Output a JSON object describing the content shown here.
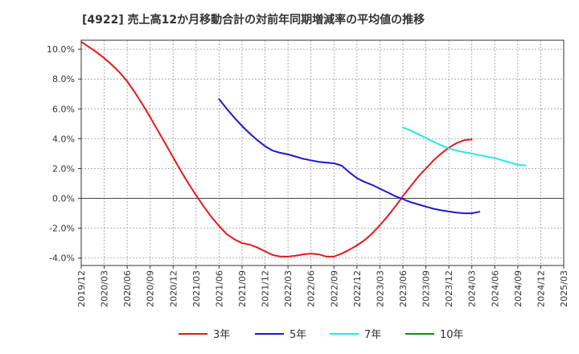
{
  "chart_data": {
    "type": "line",
    "title": "[4922]  売上高12か月移動合計の対前年同期増減率の平均値の推移",
    "xlabel": "",
    "ylabel": "",
    "x_ticks": [
      "2019/12",
      "2020/03",
      "2020/06",
      "2020/09",
      "2020/12",
      "2021/03",
      "2021/06",
      "2021/09",
      "2021/12",
      "2022/03",
      "2022/06",
      "2022/09",
      "2022/12",
      "2023/03",
      "2023/06",
      "2023/09",
      "2023/12",
      "2024/03",
      "2024/06",
      "2024/09",
      "2024/12",
      "2025/03"
    ],
    "y_ticks": [
      "10.0%",
      "8.0%",
      "6.0%",
      "4.0%",
      "2.0%",
      "0.0%",
      "-2.0%",
      "-4.0%"
    ],
    "y_tick_values": [
      10,
      8,
      6,
      4,
      2,
      0,
      -2,
      -4
    ],
    "ylim": [
      -4.5,
      10.6
    ],
    "grid": true,
    "legend_position": "bottom",
    "series": [
      {
        "name": "3年",
        "color": "#e31a1c",
        "points": [
          [
            "2019/12",
            10.5
          ],
          [
            "2020/01",
            10.15
          ],
          [
            "2020/02",
            9.8
          ],
          [
            "2020/03",
            9.4
          ],
          [
            "2020/04",
            8.95
          ],
          [
            "2020/05",
            8.45
          ],
          [
            "2020/06",
            7.85
          ],
          [
            "2020/07",
            7.1
          ],
          [
            "2020/08",
            6.3
          ],
          [
            "2020/09",
            5.45
          ],
          [
            "2020/10",
            4.55
          ],
          [
            "2020/11",
            3.65
          ],
          [
            "2020/12",
            2.75
          ],
          [
            "2021/01",
            1.85
          ],
          [
            "2021/02",
            1.0
          ],
          [
            "2021/03",
            0.2
          ],
          [
            "2021/04",
            -0.55
          ],
          [
            "2021/05",
            -1.25
          ],
          [
            "2021/06",
            -1.85
          ],
          [
            "2021/07",
            -2.4
          ],
          [
            "2021/08",
            -2.75
          ],
          [
            "2021/09",
            -3.0
          ],
          [
            "2021/10",
            -3.1
          ],
          [
            "2021/11",
            -3.3
          ],
          [
            "2021/12",
            -3.55
          ],
          [
            "2022/01",
            -3.8
          ],
          [
            "2022/02",
            -3.9
          ],
          [
            "2022/03",
            -3.9
          ],
          [
            "2022/04",
            -3.85
          ],
          [
            "2022/05",
            -3.75
          ],
          [
            "2022/06",
            -3.7
          ],
          [
            "2022/07",
            -3.75
          ],
          [
            "2022/08",
            -3.9
          ],
          [
            "2022/09",
            -3.9
          ],
          [
            "2022/10",
            -3.7
          ],
          [
            "2022/11",
            -3.45
          ],
          [
            "2022/12",
            -3.15
          ],
          [
            "2023/01",
            -2.8
          ],
          [
            "2023/02",
            -2.35
          ],
          [
            "2023/03",
            -1.8
          ],
          [
            "2023/04",
            -1.2
          ],
          [
            "2023/05",
            -0.55
          ],
          [
            "2023/06",
            0.15
          ],
          [
            "2023/07",
            0.8
          ],
          [
            "2023/08",
            1.45
          ],
          [
            "2023/09",
            2.0
          ],
          [
            "2023/10",
            2.55
          ],
          [
            "2023/11",
            3.0
          ],
          [
            "2023/12",
            3.4
          ],
          [
            "2024/01",
            3.7
          ],
          [
            "2024/02",
            3.9
          ],
          [
            "2024/03",
            3.95
          ]
        ]
      },
      {
        "name": "5年",
        "color": "#1a1ad2",
        "points": [
          [
            "2021/06",
            6.65
          ],
          [
            "2021/07",
            6.0
          ],
          [
            "2021/08",
            5.4
          ],
          [
            "2021/09",
            4.85
          ],
          [
            "2021/10",
            4.35
          ],
          [
            "2021/11",
            3.9
          ],
          [
            "2021/12",
            3.5
          ],
          [
            "2022/01",
            3.2
          ],
          [
            "2022/02",
            3.05
          ],
          [
            "2022/03",
            2.95
          ],
          [
            "2022/04",
            2.8
          ],
          [
            "2022/05",
            2.65
          ],
          [
            "2022/06",
            2.55
          ],
          [
            "2022/07",
            2.45
          ],
          [
            "2022/08",
            2.4
          ],
          [
            "2022/09",
            2.35
          ],
          [
            "2022/10",
            2.2
          ],
          [
            "2022/11",
            1.75
          ],
          [
            "2022/12",
            1.35
          ],
          [
            "2023/01",
            1.1
          ],
          [
            "2023/02",
            0.9
          ],
          [
            "2023/03",
            0.65
          ],
          [
            "2023/04",
            0.4
          ],
          [
            "2023/05",
            0.15
          ],
          [
            "2023/06",
            -0.05
          ],
          [
            "2023/07",
            -0.25
          ],
          [
            "2023/08",
            -0.4
          ],
          [
            "2023/09",
            -0.55
          ],
          [
            "2023/10",
            -0.7
          ],
          [
            "2023/11",
            -0.8
          ],
          [
            "2023/12",
            -0.88
          ],
          [
            "2024/01",
            -0.95
          ],
          [
            "2024/02",
            -1.0
          ],
          [
            "2024/03",
            -1.0
          ],
          [
            "2024/04",
            -0.9
          ]
        ]
      },
      {
        "name": "7年",
        "color": "#22e8e8",
        "points": [
          [
            "2023/06",
            4.75
          ],
          [
            "2023/07",
            4.55
          ],
          [
            "2023/08",
            4.3
          ],
          [
            "2023/09",
            4.05
          ],
          [
            "2023/10",
            3.8
          ],
          [
            "2023/11",
            3.55
          ],
          [
            "2023/12",
            3.35
          ],
          [
            "2024/01",
            3.2
          ],
          [
            "2024/02",
            3.1
          ],
          [
            "2024/03",
            3.0
          ],
          [
            "2024/04",
            2.9
          ],
          [
            "2024/05",
            2.8
          ],
          [
            "2024/06",
            2.7
          ],
          [
            "2024/07",
            2.55
          ],
          [
            "2024/08",
            2.4
          ],
          [
            "2024/09",
            2.25
          ],
          [
            "2024/10",
            2.2
          ]
        ]
      },
      {
        "name": "10年",
        "color": "#1a8a1a",
        "points": []
      }
    ]
  }
}
